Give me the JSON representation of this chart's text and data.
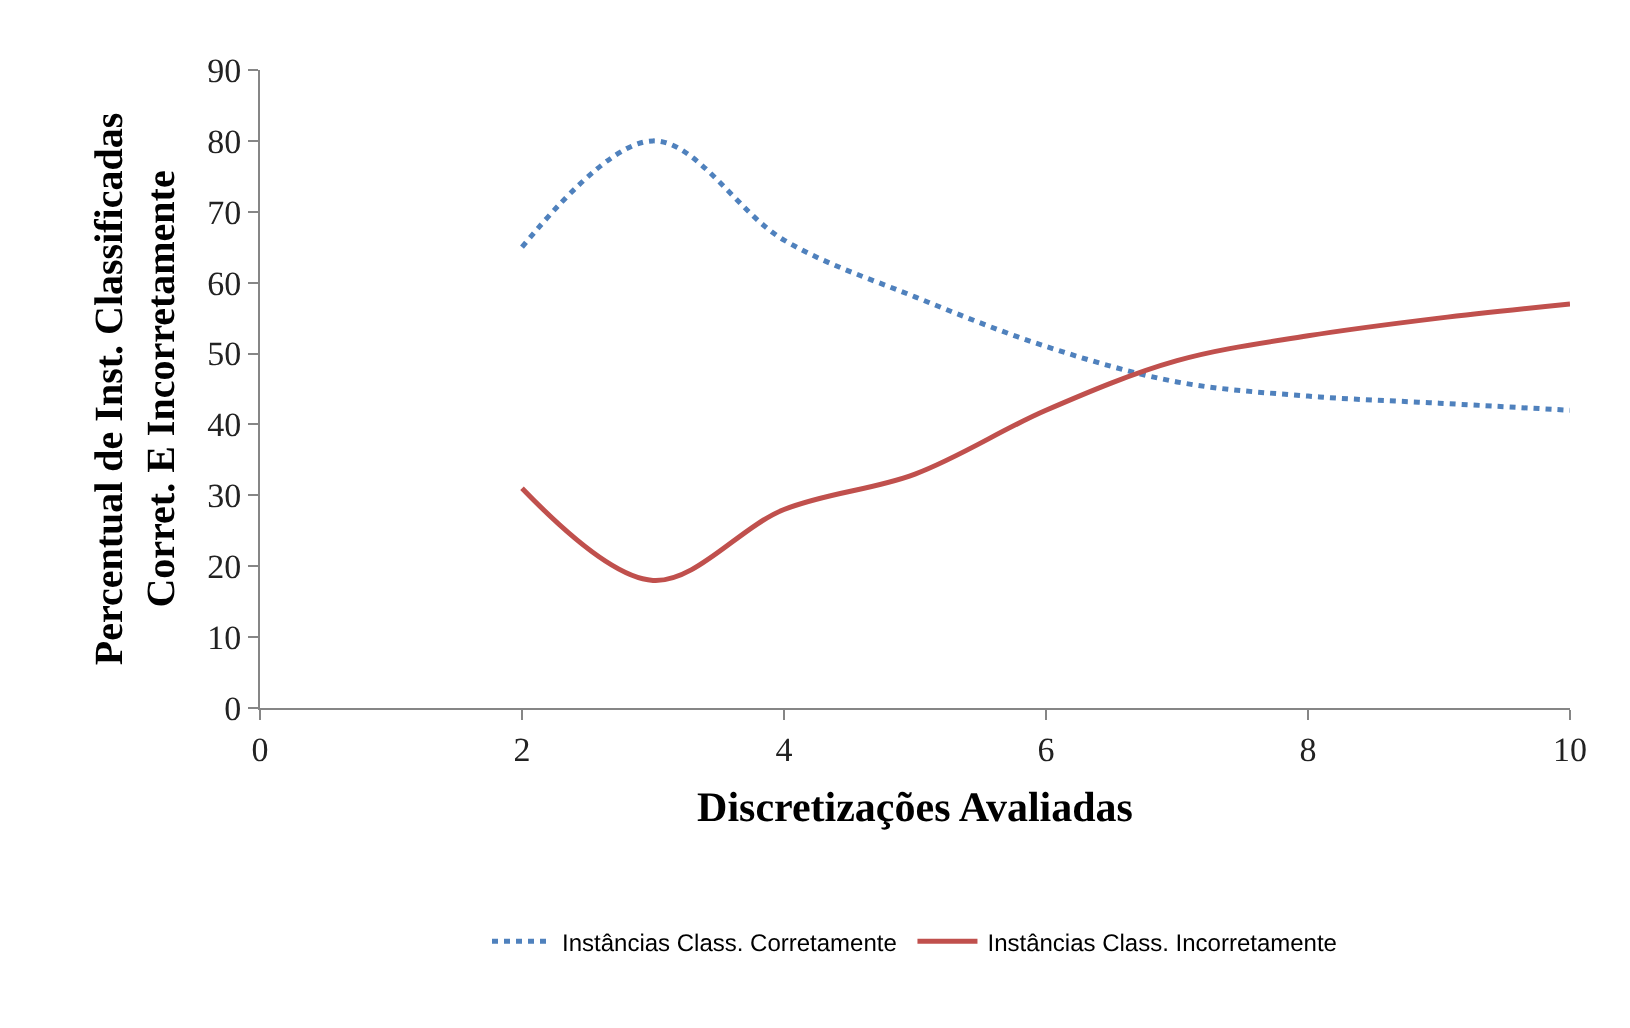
{
  "chart_data": {
    "type": "line",
    "xlabel": "Discretizações Avaliadas",
    "ylabel": "Percentual de Inst. Classificadas\nCorret. E Incorretamente",
    "x": [
      2,
      3,
      4,
      5,
      6,
      7,
      8,
      9,
      10
    ],
    "series": [
      {
        "name": "Instâncias Class. Corretamente",
        "color": "#4f81bd",
        "line_style": "dotted",
        "values": [
          65,
          80,
          66,
          58,
          51,
          46,
          44,
          43,
          42
        ]
      },
      {
        "name": "Instâncias Class. Incorretamente",
        "color": "#c0504d",
        "line_style": "solid",
        "values": [
          31,
          18,
          28,
          33,
          42,
          49,
          52.5,
          55,
          57
        ]
      }
    ],
    "xlim": [
      0,
      10
    ],
    "xticks": [
      0,
      2,
      4,
      6,
      8,
      10
    ],
    "ylim": [
      0,
      90
    ],
    "yticks": [
      0,
      10,
      20,
      30,
      40,
      50,
      60,
      70,
      80,
      90
    ],
    "grid": false,
    "legend": "bottom",
    "marker": "none"
  }
}
